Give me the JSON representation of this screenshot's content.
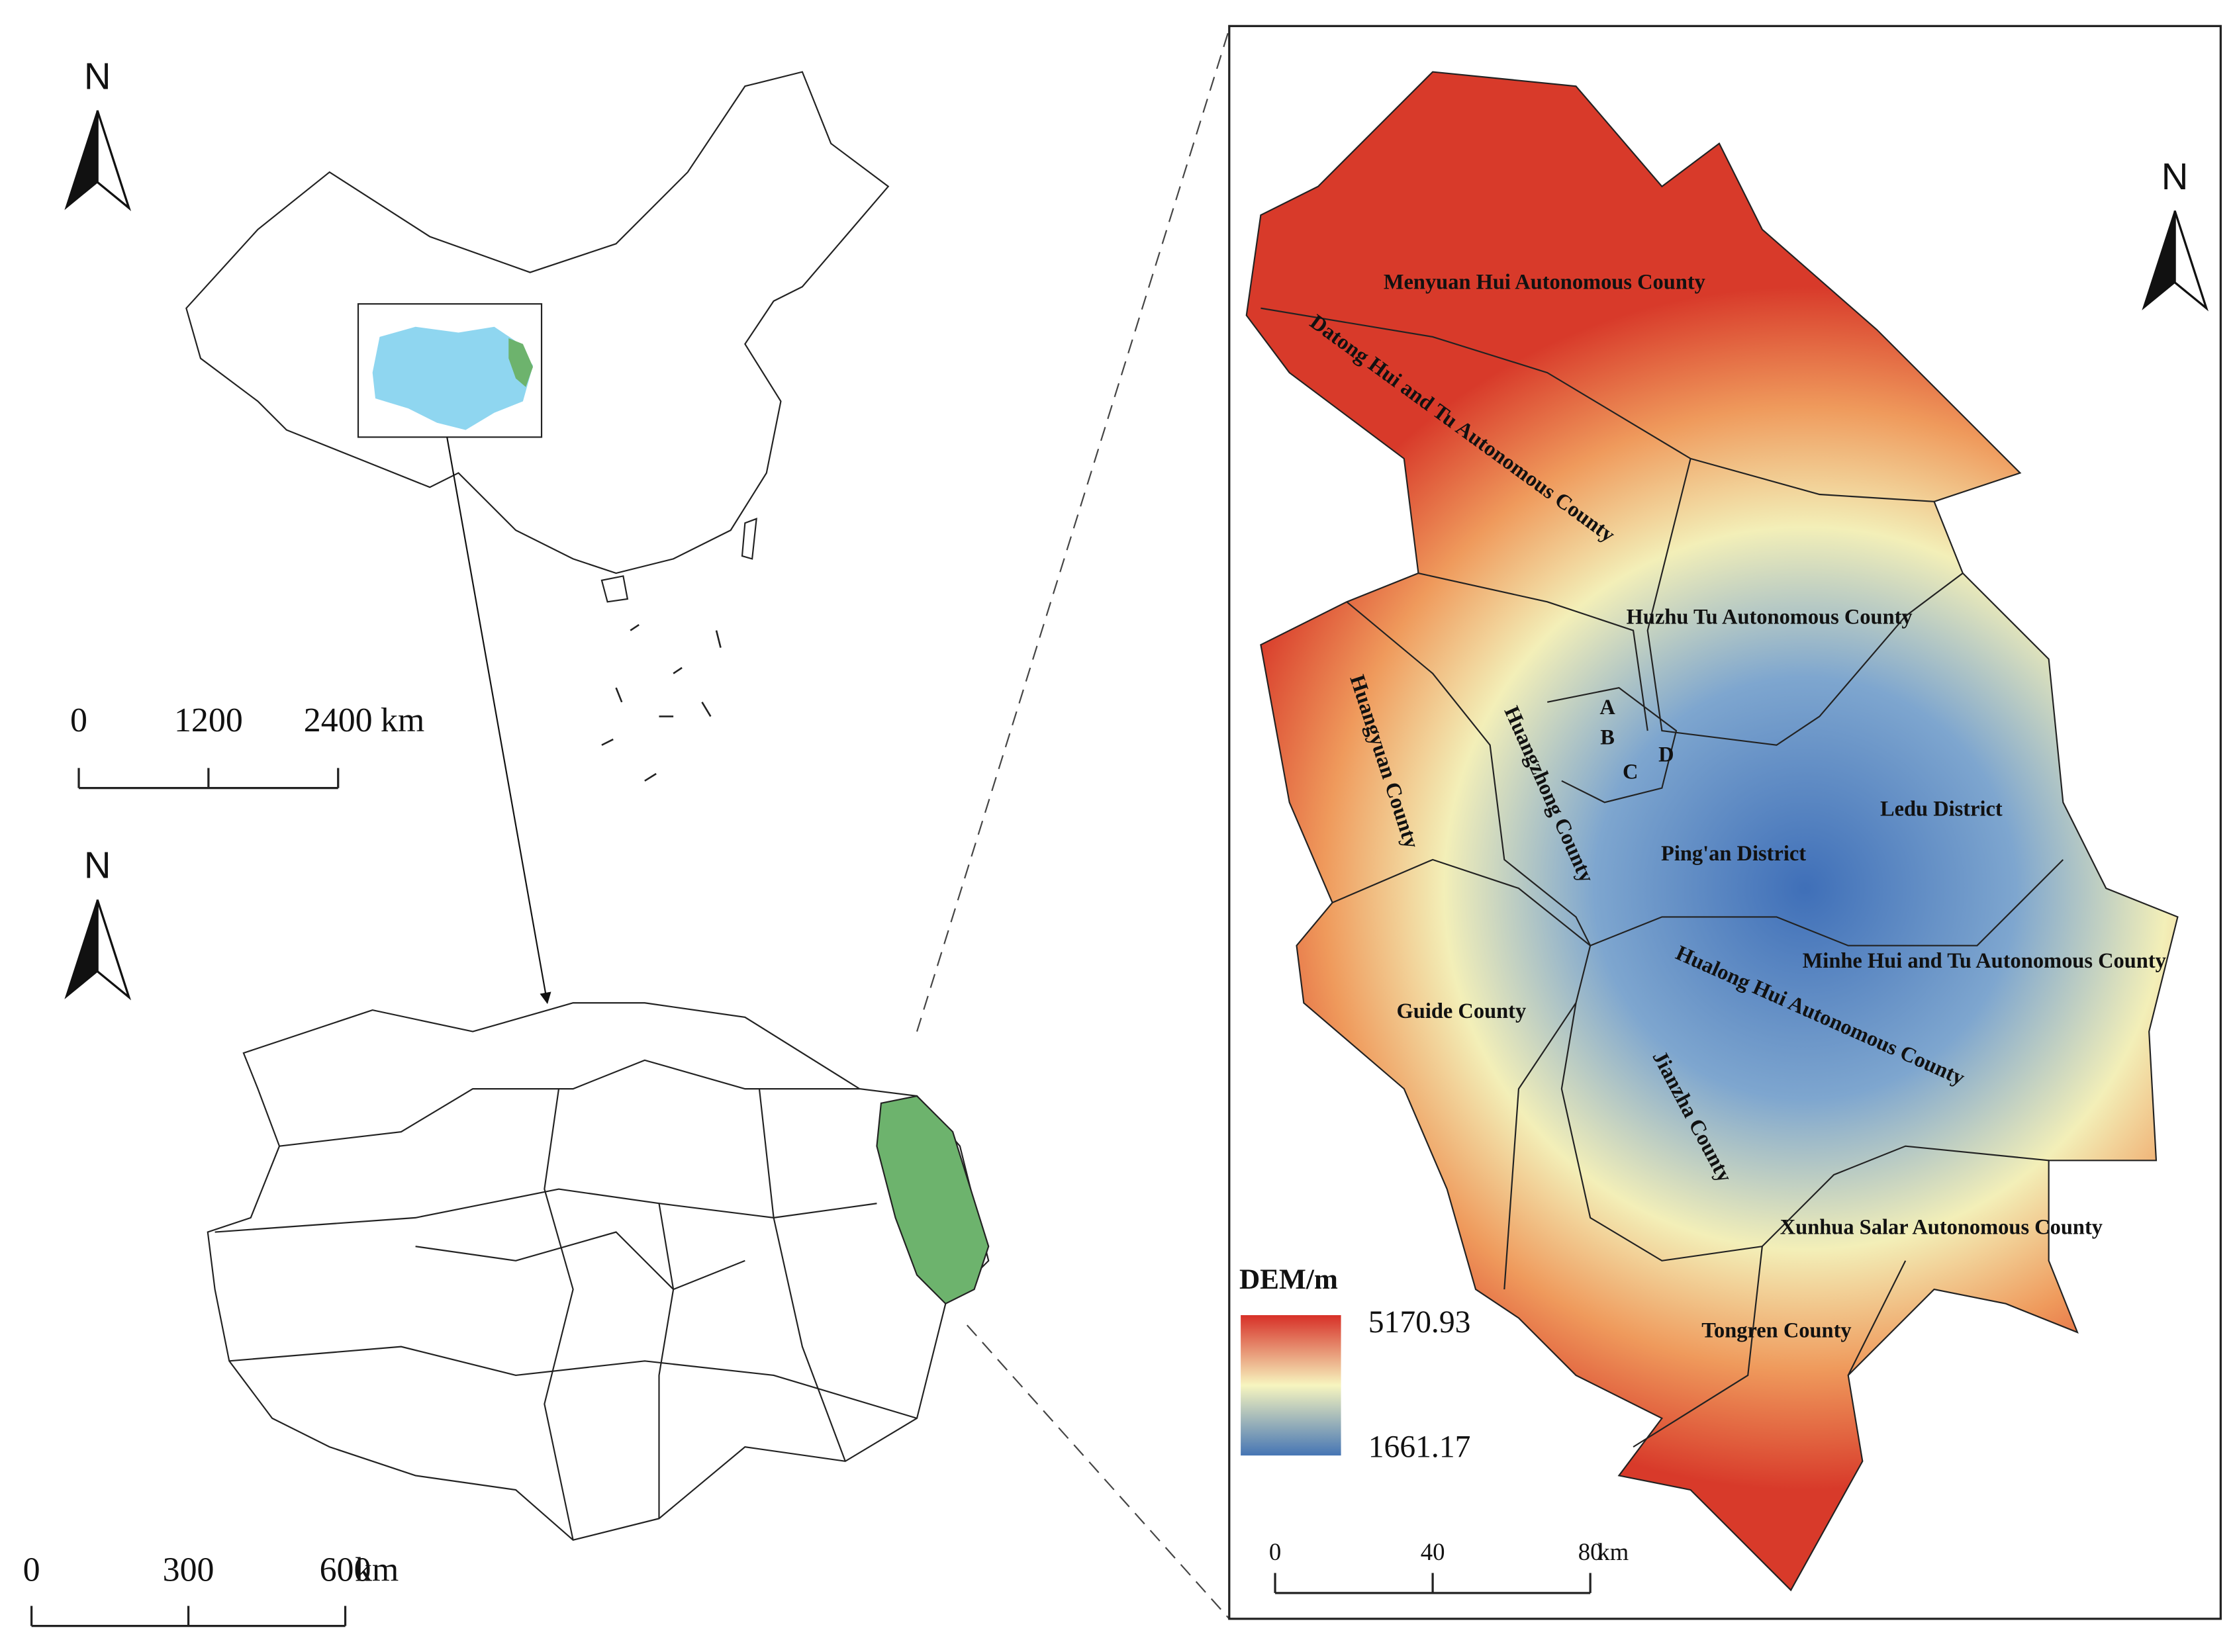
{
  "north_labels": [
    "N",
    "N",
    "N"
  ],
  "china_scale": {
    "ticks": [
      0,
      1200,
      2400
    ],
    "unit": "km"
  },
  "qinghai_scale": {
    "ticks": [
      0,
      300,
      600
    ],
    "unit": "km"
  },
  "study_scale": {
    "ticks": [
      0,
      40,
      80
    ],
    "unit": "km"
  },
  "legend": {
    "title": "DEM/m",
    "max": 5170.93,
    "min": 1661.17
  },
  "counties": [
    "Menyuan Hui Autonomous County",
    "Datong Hui and Tu Autonomous County",
    "Huzhu Tu Autonomous County",
    "Huangyuan County",
    "Huangzhong County",
    "Ping'an District",
    "Ledu District",
    "Minhe Hui and Tu Autonomous County",
    "Hualong Hui Autonomous County",
    "Guide County",
    "Jianzha County",
    "Xunhua Salar Autonomous County",
    "Tongren County"
  ],
  "districts": [
    "A",
    "B",
    "C",
    "D"
  ]
}
